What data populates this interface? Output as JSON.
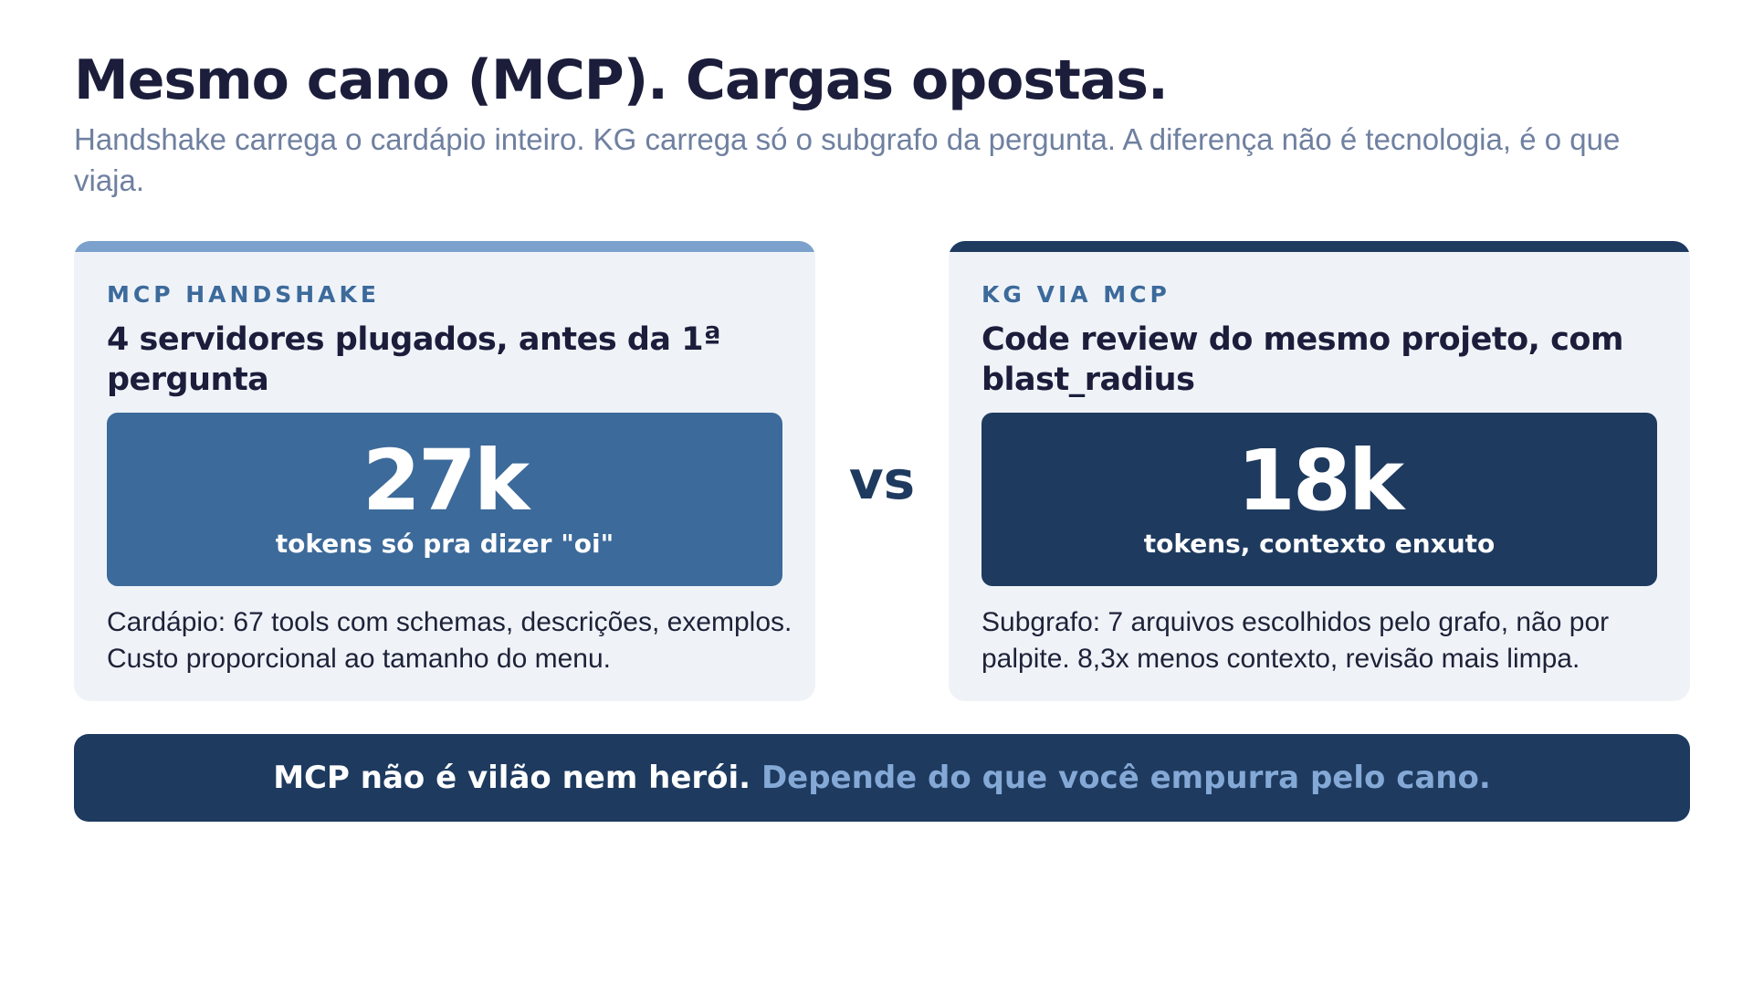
{
  "header": {
    "title": "Mesmo cano (MCP). Cargas opostas.",
    "subtitle": "Handshake carrega o cardápio inteiro. KG carrega só o subgrafo da pergunta. A diferença não é tecnologia, é o que viaja."
  },
  "cards": {
    "left": {
      "eyebrow": "MCP HANDSHAKE",
      "heading": "4 servidores plugados, antes da 1ª pergunta",
      "stat_value": "27k",
      "stat_label": "tokens só pra dizer \"oi\"",
      "body": "Cardápio: 67 tools com schemas, descrições, exemplos. Custo proporcional ao tamanho do menu.",
      "accent_color": "#7ba1cc",
      "box_color": "#3c6a9a"
    },
    "right": {
      "eyebrow": "KG VIA MCP",
      "heading": "Code review do mesmo projeto, com blast_radius",
      "stat_value": "18k",
      "stat_label": "tokens, contexto enxuto",
      "body": "Subgrafo: 7 arquivos escolhidos pelo grafo, não por palpite. 8,3x menos contexto, revisão mais limpa.",
      "accent_color": "#1e3a5f",
      "box_color": "#1e3a5f"
    }
  },
  "vs_label": "vs",
  "footer": {
    "strong": "MCP não é vilão nem herói.",
    "accent": "Depende do que você empurra pelo cano."
  }
}
